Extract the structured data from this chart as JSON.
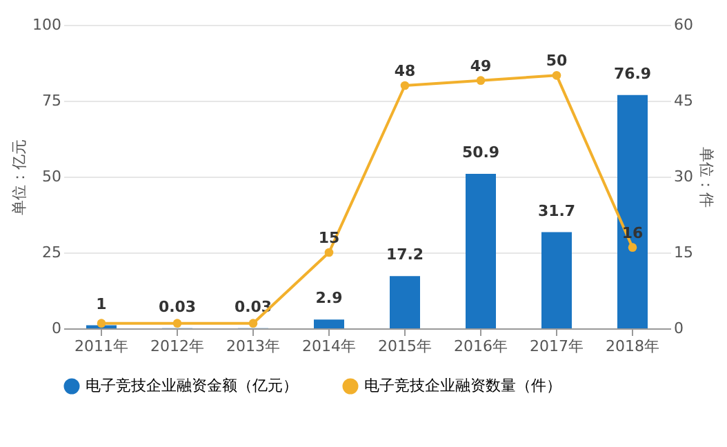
{
  "chart_data": {
    "type": "bar",
    "categories": [
      "2011年",
      "2012年",
      "2013年",
      "2014年",
      "2015年",
      "2016年",
      "2017年",
      "2018年"
    ],
    "ylabel": "单位：亿元",
    "y2label": "单位：件",
    "ylim": [
      0,
      100
    ],
    "yticks": [
      0,
      25,
      50,
      75,
      100
    ],
    "y2lim": [
      0,
      60
    ],
    "y2ticks": [
      0,
      15,
      30,
      45,
      60
    ],
    "series": [
      {
        "name": "电子竞技企业融资金额（亿元）",
        "color": "#1a75c2",
        "values": [
          1,
          0.03,
          0.03,
          2.9,
          17.2,
          50.9,
          31.7,
          76.9
        ],
        "value_labels": [
          "1",
          "0.03",
          "0.03",
          "2.9",
          "17.2",
          "50.9",
          "31.7",
          "76.9"
        ]
      },
      {
        "name": "电子竞技企业融资数量（件）",
        "type": "line",
        "axis": "y2",
        "color": "#f2b02c",
        "values": [
          1,
          1,
          1,
          15,
          48,
          49,
          50,
          16
        ],
        "value_labels": [
          null,
          null,
          null,
          "15",
          "48",
          "49",
          "50",
          "16"
        ]
      }
    ],
    "grid": "y",
    "legend": "bottom",
    "marker": "circle",
    "line_style": "solid"
  }
}
